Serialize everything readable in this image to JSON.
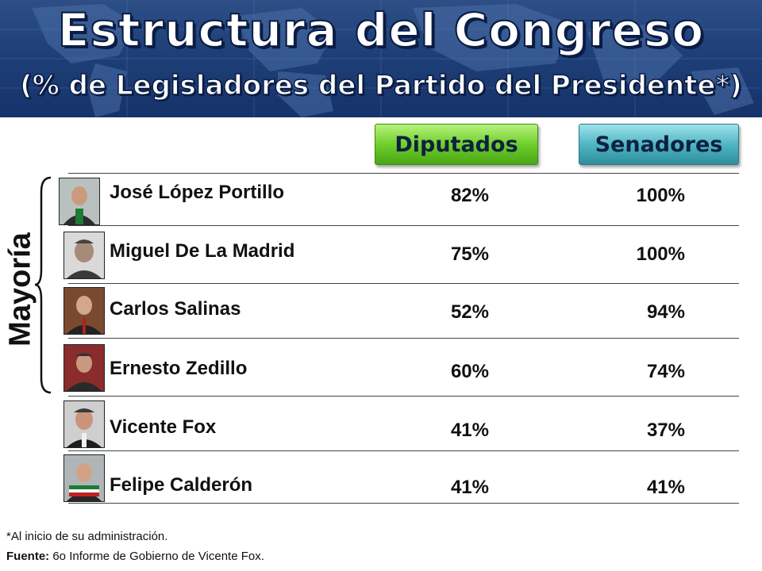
{
  "header": {
    "title": "Estructura del Congreso",
    "subtitle": "(% de Legisladores del Partido del Presidente*)"
  },
  "columns": {
    "diputados": "Diputados",
    "senadores": "Senadores"
  },
  "group_label": "Mayoría",
  "rows": [
    {
      "name": "José López Portillo",
      "diputados": "82%",
      "senadores": "100%"
    },
    {
      "name": "Miguel De La Madrid",
      "diputados": "75%",
      "senadores": "100%"
    },
    {
      "name": "Carlos Salinas",
      "diputados": "52%",
      "senadores": "94%"
    },
    {
      "name": "Ernesto Zedillo",
      "diputados": "60%",
      "senadores": "74%"
    },
    {
      "name": "Vicente Fox",
      "diputados": "41%",
      "senadores": "37%"
    },
    {
      "name": "Felipe Calderón",
      "diputados": "41%",
      "senadores": "41%"
    }
  ],
  "footnote": {
    "note": "*Al inicio de su administración.",
    "source_label": "Fuente:",
    "source_text": " 6o Informe de Gobierno de Vicente Fox."
  },
  "colors": {
    "banner": "#1e3f78",
    "diputados_accent": "#6fcf2b",
    "senadores_accent": "#4fb6c4"
  }
}
